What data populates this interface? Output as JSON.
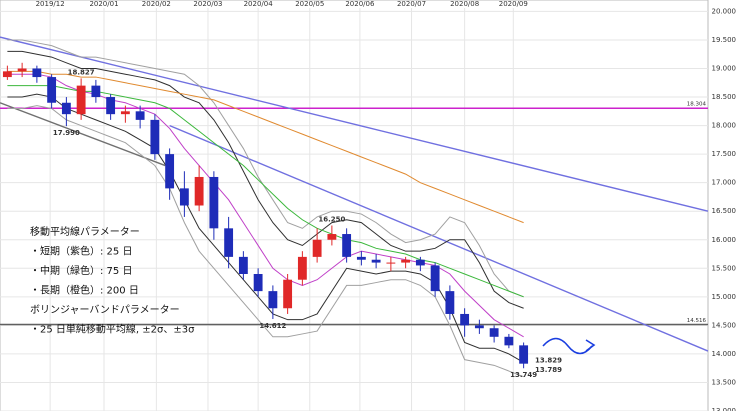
{
  "chart_data": {
    "type": "candlestick",
    "xticks": [
      {
        "value": 3.4,
        "label": "2019/12"
      },
      {
        "value": 7.05,
        "label": "2020/01"
      },
      {
        "value": 10.6,
        "label": "2020/02"
      },
      {
        "value": 14.1,
        "label": "2020/03"
      },
      {
        "value": 17.5,
        "label": "2020/04"
      },
      {
        "value": 21.0,
        "label": "2020/05"
      },
      {
        "value": 24.4,
        "label": "2020/06"
      },
      {
        "value": 27.9,
        "label": "2020/07"
      },
      {
        "value": 31.5,
        "label": "2020/08"
      },
      {
        "value": 34.8,
        "label": "2020/09"
      }
    ],
    "xlim": [
      0,
      48
    ],
    "ylim": [
      13.0,
      20.2
    ],
    "yticks": [
      {
        "value": 13,
        "label": "13.000"
      },
      {
        "value": 13.5,
        "label": "13.500"
      },
      {
        "value": 14,
        "label": "14.000"
      },
      {
        "value": 14.5,
        "label": "14.500"
      },
      {
        "value": 15,
        "label": "15.000"
      },
      {
        "value": 15.5,
        "label": "15.500"
      },
      {
        "value": 16,
        "label": "16.000"
      },
      {
        "value": 16.5,
        "label": "16.500"
      },
      {
        "value": 17,
        "label": "17.000"
      },
      {
        "value": 17.5,
        "label": "17.500"
      },
      {
        "value": 18,
        "label": "18.000"
      },
      {
        "value": 18.5,
        "label": "18.500"
      },
      {
        "value": 19,
        "label": "19.000"
      },
      {
        "value": 19.5,
        "label": "19.500"
      },
      {
        "value": 20,
        "label": "20.000"
      }
    ],
    "grid": true,
    "up_color": "#e02828",
    "down_color": "#1e2cb8",
    "candles": [
      [
        18.85,
        19.05,
        18.8,
        18.95
      ],
      [
        18.95,
        19.1,
        18.85,
        19.0
      ],
      [
        19.0,
        19.05,
        18.75,
        18.85
      ],
      [
        18.85,
        18.9,
        18.3,
        18.4
      ],
      [
        18.4,
        18.5,
        17.99,
        18.2
      ],
      [
        18.2,
        18.827,
        18.1,
        18.7
      ],
      [
        18.7,
        18.8,
        18.4,
        18.5
      ],
      [
        18.5,
        18.55,
        18.1,
        18.2
      ],
      [
        18.2,
        18.35,
        18.05,
        18.25
      ],
      [
        18.25,
        18.35,
        17.95,
        18.1
      ],
      [
        18.1,
        18.2,
        17.4,
        17.5
      ],
      [
        17.5,
        17.6,
        16.7,
        16.9
      ],
      [
        16.9,
        17.2,
        16.4,
        16.6
      ],
      [
        16.6,
        17.3,
        16.5,
        17.1
      ],
      [
        17.1,
        17.2,
        16.0,
        16.2
      ],
      [
        16.2,
        16.4,
        15.5,
        15.7
      ],
      [
        15.7,
        15.8,
        15.3,
        15.4
      ],
      [
        15.4,
        15.5,
        15.0,
        15.1
      ],
      [
        15.1,
        15.2,
        14.612,
        14.8
      ],
      [
        14.8,
        15.4,
        14.7,
        15.3
      ],
      [
        15.3,
        15.8,
        15.2,
        15.7
      ],
      [
        15.7,
        16.2,
        15.6,
        16.0
      ],
      [
        16.0,
        16.25,
        15.9,
        16.1
      ],
      [
        16.1,
        16.2,
        15.6,
        15.7
      ],
      [
        15.7,
        15.8,
        15.55,
        15.65
      ],
      [
        15.65,
        15.75,
        15.5,
        15.6
      ],
      [
        15.6,
        15.7,
        15.45,
        15.6
      ],
      [
        15.6,
        15.7,
        15.5,
        15.65
      ],
      [
        15.65,
        15.7,
        15.45,
        15.55
      ],
      [
        15.55,
        15.6,
        15.0,
        15.1
      ],
      [
        15.1,
        15.2,
        14.6,
        14.7
      ],
      [
        14.7,
        14.8,
        14.3,
        14.5
      ],
      [
        14.5,
        14.6,
        14.35,
        14.45
      ],
      [
        14.45,
        14.5,
        14.2,
        14.3
      ],
      [
        14.3,
        14.35,
        14.1,
        14.15
      ],
      [
        14.15,
        14.2,
        13.749,
        13.829
      ]
    ],
    "series": [
      {
        "name": "+3σ",
        "color": "#a0a0a0",
        "values": [
          19.5,
          19.5,
          19.45,
          19.4,
          19.3,
          19.2,
          19.2,
          19.15,
          19.1,
          19.05,
          19.0,
          18.95,
          18.9,
          18.7,
          18.4,
          18.0,
          17.6,
          17.1,
          16.7,
          16.3,
          16.2,
          16.4,
          16.5,
          16.5,
          16.45,
          16.3,
          16.1,
          15.95,
          16.0,
          16.1,
          16.4,
          16.3,
          15.9,
          15.4,
          15.1,
          15.0
        ]
      },
      {
        "name": "-3σ",
        "color": "#a0a0a0",
        "values": [
          18.3,
          18.3,
          18.35,
          18.3,
          18.1,
          18.0,
          17.9,
          17.8,
          17.7,
          17.5,
          17.3,
          16.9,
          16.3,
          15.8,
          15.5,
          15.2,
          14.9,
          14.6,
          14.3,
          14.3,
          14.35,
          14.4,
          14.8,
          15.2,
          15.2,
          15.25,
          15.3,
          15.3,
          15.2,
          15.0,
          14.5,
          13.9,
          13.85,
          13.8,
          13.7,
          13.6
        ]
      },
      {
        "name": "+2σ",
        "color": "#303030",
        "values": [
          19.3,
          19.3,
          19.25,
          19.2,
          19.1,
          19.0,
          19.0,
          18.95,
          18.9,
          18.85,
          18.8,
          18.7,
          18.5,
          18.4,
          18.1,
          17.7,
          17.2,
          16.7,
          16.3,
          16.0,
          15.9,
          16.1,
          16.3,
          16.35,
          16.3,
          16.1,
          15.9,
          15.8,
          15.8,
          15.85,
          16.0,
          16.0,
          15.6,
          15.1,
          14.9,
          14.8
        ]
      },
      {
        "name": "-2σ",
        "color": "#303030",
        "values": [
          18.5,
          18.5,
          18.55,
          18.5,
          18.3,
          18.2,
          18.1,
          18.0,
          17.9,
          17.75,
          17.6,
          17.2,
          16.7,
          16.2,
          15.9,
          15.6,
          15.3,
          15.0,
          14.7,
          14.6,
          14.6,
          14.7,
          15.1,
          15.5,
          15.45,
          15.4,
          15.45,
          15.45,
          15.4,
          15.25,
          14.8,
          14.2,
          14.1,
          14.1,
          14.0,
          13.85
        ]
      },
      {
        "name": "200",
        "color": "#e08a30",
        "values": [
          18.95,
          18.95,
          18.95,
          18.9,
          18.9,
          18.85,
          18.85,
          18.8,
          18.75,
          18.7,
          18.65,
          18.6,
          18.55,
          18.5,
          18.45,
          18.35,
          18.25,
          18.15,
          18.05,
          17.95,
          17.85,
          17.75,
          17.65,
          17.55,
          17.45,
          17.35,
          17.25,
          17.15,
          17.0,
          16.9,
          16.8,
          16.7,
          16.6,
          16.5,
          16.4,
          16.3
        ]
      },
      {
        "name": "75",
        "color": "#3cb83c",
        "values": [
          18.7,
          18.7,
          18.7,
          18.7,
          18.65,
          18.6,
          18.6,
          18.55,
          18.5,
          18.45,
          18.4,
          18.3,
          18.1,
          17.9,
          17.7,
          17.5,
          17.3,
          17.05,
          16.8,
          16.55,
          16.35,
          16.2,
          16.1,
          16.0,
          15.95,
          15.85,
          15.8,
          15.75,
          15.65,
          15.6,
          15.5,
          15.4,
          15.3,
          15.2,
          15.1,
          15.0
        ]
      },
      {
        "name": "25",
        "color": "#c040c8",
        "values": [
          18.9,
          18.9,
          18.9,
          18.85,
          18.7,
          18.6,
          18.55,
          18.45,
          18.4,
          18.3,
          18.2,
          17.95,
          17.6,
          17.3,
          17.0,
          16.7,
          16.3,
          15.9,
          15.5,
          15.3,
          15.2,
          15.3,
          15.5,
          15.7,
          15.8,
          15.75,
          15.7,
          15.65,
          15.6,
          15.55,
          15.4,
          15.1,
          14.85,
          14.6,
          14.45,
          14.3
        ]
      }
    ],
    "trendlines": [
      {
        "x": [
          0,
          48
        ],
        "y": [
          19.55,
          16.5
        ],
        "color": "#7070e0"
      },
      {
        "x": [
          11.5,
          48
        ],
        "y": [
          18.0,
          14.05
        ],
        "color": "#7070e0"
      },
      {
        "x": [
          0,
          11.2
        ],
        "y": [
          18.4,
          17.3
        ],
        "color": "#707070"
      }
    ],
    "levels": [
      {
        "value": 18.304,
        "label": "18.304",
        "color": "#cc22cc"
      },
      {
        "value": 14.516,
        "label": "14.516",
        "color": "#606060"
      }
    ],
    "annotations": [
      {
        "x": 5,
        "value": 18.827,
        "label": "18.827",
        "color": "#e07000",
        "pos": "above"
      },
      {
        "x": 4,
        "value": 17.99,
        "label": "17.990",
        "color": "#20a020",
        "pos": "below"
      },
      {
        "x": 18,
        "value": 14.612,
        "label": "14.612",
        "color": "#20a020",
        "pos": "below"
      },
      {
        "x": 22,
        "value": 16.25,
        "label": "16.250",
        "color": "#e07000",
        "pos": "above"
      },
      {
        "x": 35,
        "value": 13.749,
        "label": "13.749",
        "color": "#20a020",
        "pos": "below"
      }
    ],
    "price_tags": [
      {
        "value": 13.829,
        "label": "13.829",
        "color": "#e02020"
      },
      {
        "value": 13.789,
        "label": "13.789",
        "color": "#10a0c0"
      }
    ],
    "notes": [
      "移動平均線パラメーター",
      "・短期（紫色）: 25 日",
      "・中期（緑色）: 75 日",
      "・長期（橙色）: 200 日",
      "ボリンジャーバンドパラメーター",
      "・25 日単純移動平均線, ±2σ、±3σ"
    ]
  }
}
